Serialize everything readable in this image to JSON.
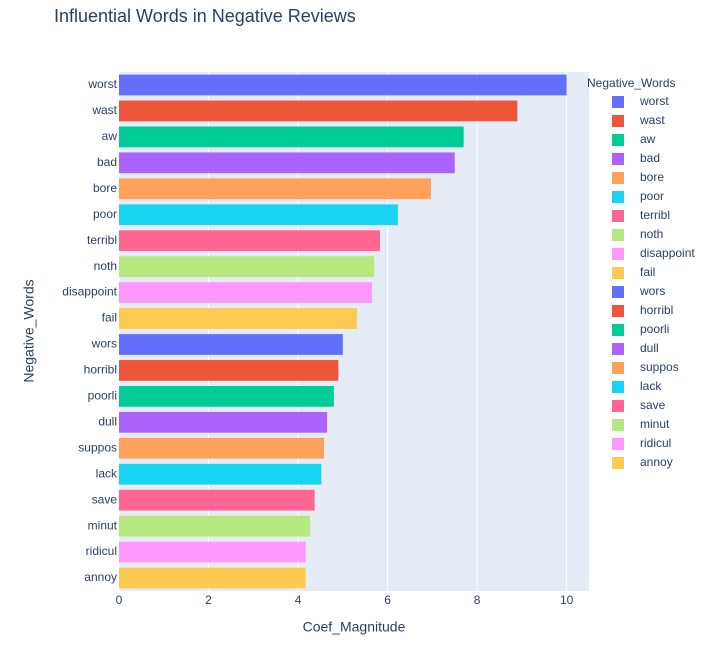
{
  "chart_data": {
    "type": "bar",
    "orientation": "horizontal",
    "title": "Influential Words in Negative Reviews",
    "x_label": "Coef_Magnitude",
    "y_label": "Negative_Words",
    "legend_title": "Negative_Words",
    "categories": [
      "worst",
      "wast",
      "aw",
      "bad",
      "bore",
      "poor",
      "terribl",
      "noth",
      "disappoint",
      "fail",
      "wors",
      "horribl",
      "poorli",
      "dull",
      "suppos",
      "lack",
      "save",
      "minut",
      "ridicul",
      "annoy"
    ],
    "values": [
      10,
      8.9,
      7.7,
      7.5,
      6.97,
      6.23,
      5.83,
      5.7,
      5.65,
      5.32,
      5.0,
      4.9,
      4.8,
      4.65,
      4.58,
      4.52,
      4.37,
      4.27,
      4.17,
      4.17
    ],
    "colors": [
      "#636efa",
      "#EF553B",
      "#00cc96",
      "#ab63fa",
      "#FFA15A",
      "#19d3f3",
      "#FF6692",
      "#B6E880",
      "#FF97FF",
      "#FECB52",
      "#636efa",
      "#EF553B",
      "#00cc96",
      "#ab63fa",
      "#FFA15A",
      "#19d3f3",
      "#FF6692",
      "#B6E880",
      "#FF97FF",
      "#FECB52"
    ],
    "xlim": [
      0,
      10.5
    ],
    "xticks": [
      0,
      2,
      4,
      6,
      8,
      10
    ],
    "grid": true,
    "legend": "right"
  }
}
